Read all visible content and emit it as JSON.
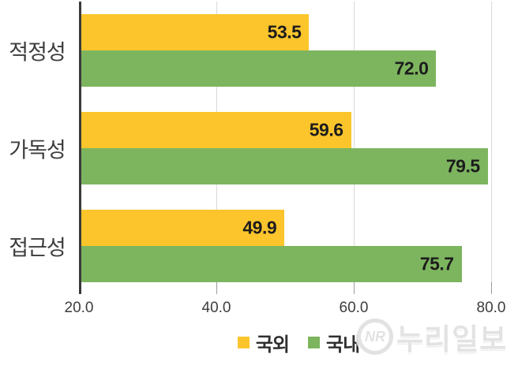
{
  "chart_data": {
    "type": "bar",
    "orientation": "horizontal",
    "title": "",
    "categories": [
      "적정성",
      "가독성",
      "접근성"
    ],
    "series": [
      {
        "name": "국외",
        "color": "#FCC52C",
        "values": [
          53.5,
          59.6,
          49.9
        ]
      },
      {
        "name": "국내",
        "color": "#7DB55F",
        "values": [
          72.0,
          79.5,
          75.7
        ]
      }
    ],
    "xlim": [
      20,
      80
    ],
    "x_tick_values": [
      20,
      40,
      60,
      80
    ],
    "x_tick_labels": [
      "20.0",
      "40.0",
      "60.0",
      "80.0"
    ],
    "value_label_decimals": 1,
    "grid": true,
    "legend_position": "bottom"
  },
  "watermark": {
    "logo": "NR",
    "text": "누리일보"
  }
}
